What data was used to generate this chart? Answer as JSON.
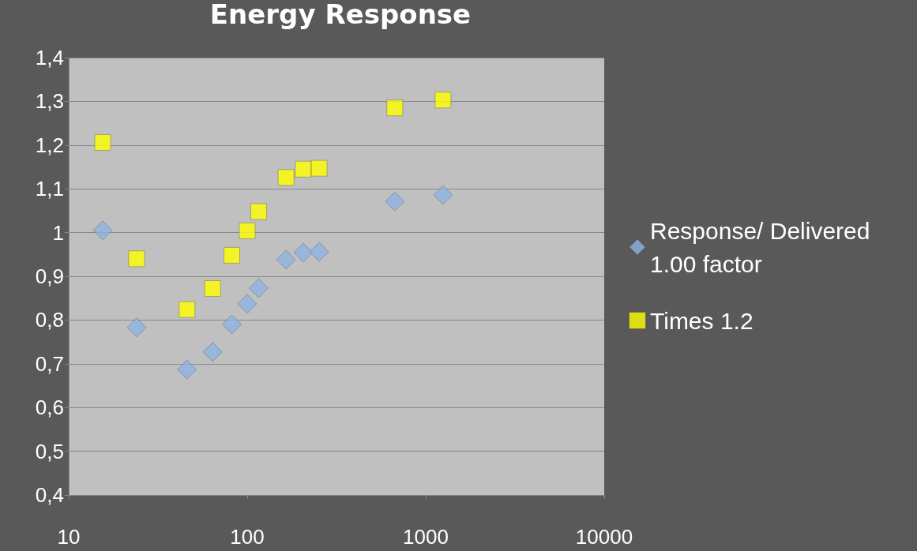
{
  "chart_data": {
    "type": "scatter",
    "title": "Energy Response",
    "xlim": [
      10,
      10000
    ],
    "xticks": [
      10,
      100,
      1000,
      10000
    ],
    "log": "x",
    "ylim": [
      0.4,
      1.4
    ],
    "yticks": [
      {
        "value": 0.4,
        "label": "0,4"
      },
      {
        "value": 0.5,
        "label": "0,5"
      },
      {
        "value": 0.6,
        "label": "0,6"
      },
      {
        "value": 0.7,
        "label": "0,7"
      },
      {
        "value": 0.8,
        "label": "0,8"
      },
      {
        "value": 0.9,
        "label": "0,9"
      },
      1,
      {
        "value": 1.1,
        "label": "1,1"
      },
      {
        "value": 1.2,
        "label": "1,2"
      },
      {
        "value": 1.3,
        "label": "1,3"
      },
      {
        "value": 1.4,
        "label": "1,4"
      }
    ],
    "grid": "y",
    "legend": "right",
    "x": [
      15.5,
      24,
      46,
      64,
      82,
      100,
      116,
      165,
      206,
      253,
      671,
      1250
    ],
    "series": [
      {
        "name": "Response/ Delivered 1.00 factor",
        "color": "#8db3e2",
        "marker": "diamond",
        "values": [
          1.005,
          0.783,
          0.687,
          0.727,
          0.79,
          0.837,
          0.873,
          0.938,
          0.954,
          0.956,
          1.071,
          1.086
        ]
      },
      {
        "name": "Times 1.2",
        "color": "#ffff00",
        "marker": "square",
        "values": [
          1.206,
          0.94,
          0.824,
          0.872,
          0.948,
          1.004,
          1.048,
          1.126,
          1.145,
          1.147,
          1.285,
          1.303
        ]
      }
    ]
  }
}
